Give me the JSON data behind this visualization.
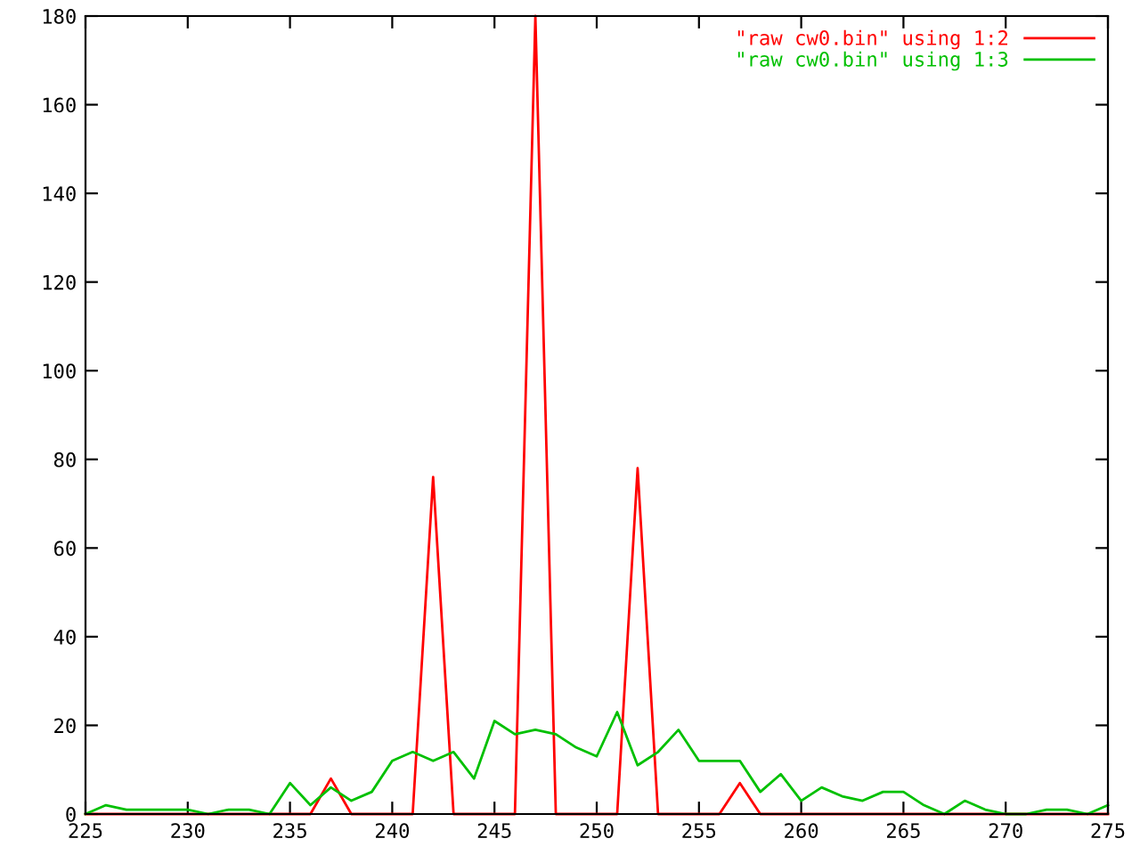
{
  "chart_data": {
    "type": "line",
    "x": [
      225,
      226,
      227,
      228,
      229,
      230,
      231,
      232,
      233,
      234,
      235,
      236,
      237,
      238,
      239,
      240,
      241,
      242,
      243,
      244,
      245,
      246,
      247,
      248,
      249,
      250,
      251,
      252,
      253,
      254,
      255,
      256,
      257,
      258,
      259,
      260,
      261,
      262,
      263,
      264,
      265,
      266,
      267,
      268,
      269,
      270,
      271,
      272,
      273,
      274,
      275
    ],
    "series": [
      {
        "name": "\"raw cw0.bin\" using 1:2",
        "color": "#ff0000",
        "values": [
          0,
          0,
          0,
          0,
          0,
          0,
          0,
          0,
          0,
          0,
          0,
          0,
          8,
          0,
          0,
          0,
          0,
          76,
          0,
          0,
          0,
          0,
          180,
          0,
          0,
          0,
          0,
          78,
          0,
          0,
          0,
          0,
          7,
          0,
          0,
          0,
          0,
          0,
          0,
          0,
          0,
          0,
          0,
          0,
          0,
          0,
          0,
          0,
          0,
          0,
          0
        ]
      },
      {
        "name": "\"raw cw0.bin\" using 1:3",
        "color": "#00c000",
        "values": [
          0,
          2,
          1,
          1,
          1,
          1,
          0,
          1,
          1,
          0,
          7,
          2,
          6,
          3,
          5,
          12,
          14,
          12,
          14,
          8,
          21,
          18,
          19,
          18,
          15,
          13,
          23,
          11,
          14,
          19,
          12,
          12,
          12,
          5,
          9,
          3,
          6,
          4,
          3,
          5,
          5,
          2,
          0,
          3,
          1,
          0,
          0,
          1,
          1,
          0,
          2
        ]
      }
    ],
    "xlim": [
      225,
      275
    ],
    "xticks": [
      225,
      230,
      235,
      240,
      245,
      250,
      255,
      260,
      265,
      270,
      275
    ],
    "ylim": [
      0,
      180
    ],
    "yticks": [
      0,
      20,
      40,
      60,
      80,
      100,
      120,
      140,
      160,
      180
    ],
    "grid": false,
    "legend": "top right",
    "marker": "none",
    "line_style": "solid"
  }
}
